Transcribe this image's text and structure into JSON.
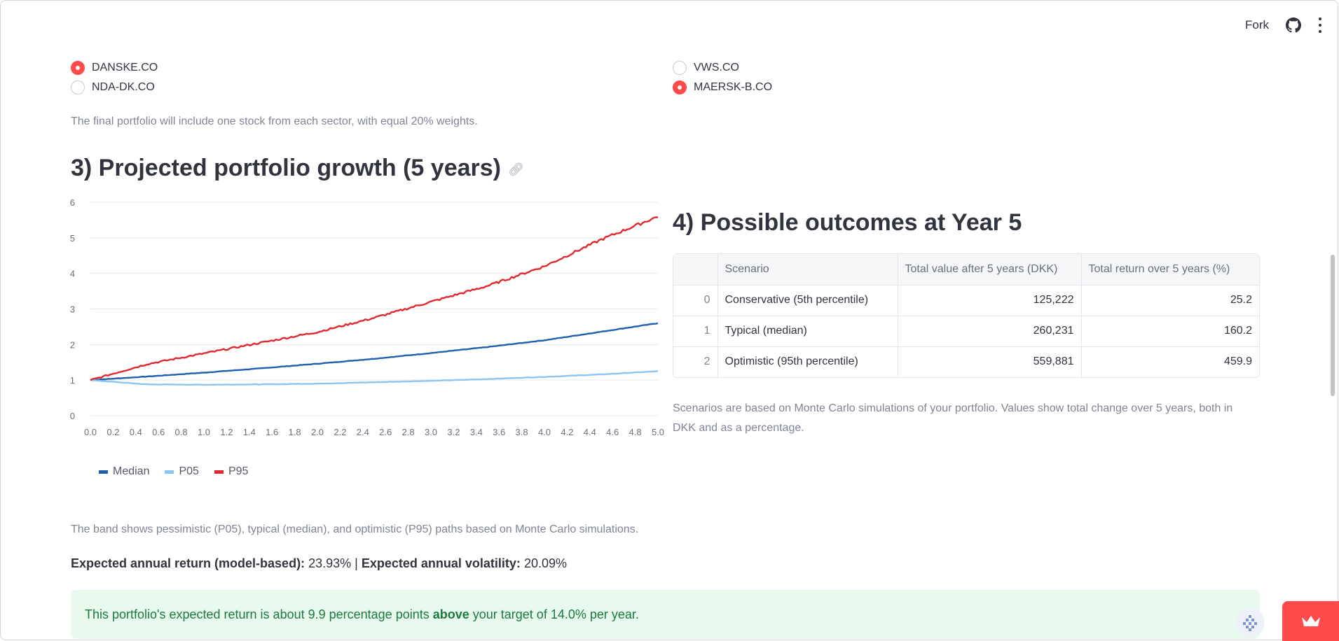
{
  "header": {
    "fork_label": "Fork"
  },
  "radio_left": [
    {
      "label": "DANSKE.CO",
      "selected": true
    },
    {
      "label": "NDA-DK.CO",
      "selected": false
    }
  ],
  "radio_right": [
    {
      "label": "VWS.CO",
      "selected": false
    },
    {
      "label": "MAERSK-B.CO",
      "selected": true
    }
  ],
  "portfolio_note": "The final portfolio will include one stock from each sector, with equal 20% weights.",
  "section3": {
    "title": "3) Projected portfolio growth (5 years)"
  },
  "chart_data": {
    "type": "line",
    "xlim": [
      0,
      5
    ],
    "ylim": [
      0,
      6
    ],
    "x_ticks": [
      "0.0",
      "0.2",
      "0.4",
      "0.6",
      "0.8",
      "1.0",
      "1.2",
      "1.4",
      "1.6",
      "1.8",
      "2.0",
      "2.2",
      "2.4",
      "2.6",
      "2.8",
      "3.0",
      "3.2",
      "3.4",
      "3.6",
      "3.8",
      "4.0",
      "4.2",
      "4.4",
      "4.6",
      "4.8",
      "5.0"
    ],
    "y_ticks": [
      "0",
      "1",
      "2",
      "3",
      "4",
      "5",
      "6"
    ],
    "grid": "horizontal",
    "legend_position": "bottom-left",
    "x": [
      0,
      0.5,
      1.0,
      1.5,
      2.0,
      2.5,
      3.0,
      3.5,
      4.0,
      4.5,
      5.0
    ],
    "series": [
      {
        "name": "Median",
        "color": "#1f5fad",
        "values": [
          1.0,
          1.1,
          1.21,
          1.33,
          1.46,
          1.6,
          1.76,
          1.93,
          2.12,
          2.36,
          2.6
        ]
      },
      {
        "name": "P05",
        "color": "#8ec5f0",
        "values": [
          1.0,
          0.88,
          0.87,
          0.88,
          0.9,
          0.94,
          0.98,
          1.03,
          1.09,
          1.16,
          1.25
        ]
      },
      {
        "name": "P95",
        "color": "#e0292e",
        "values": [
          1.0,
          1.45,
          1.75,
          2.05,
          2.35,
          2.75,
          3.2,
          3.65,
          4.2,
          4.95,
          5.6
        ]
      }
    ]
  },
  "band_note": "The band shows pessimistic (P05), typical (median), and optimistic (P95) paths based on Monte Carlo simulations.",
  "metrics": {
    "return_label": "Expected annual return (model-based):",
    "return_value": "23.93%",
    "separator": "|",
    "vol_label": "Expected annual volatility:",
    "vol_value": "20.09%"
  },
  "success": {
    "prefix": "This portfolio's expected return is about 9.9 percentage points",
    "emphasis": "above",
    "suffix": "your target of 14.0% per year."
  },
  "section4": {
    "title": "4) Possible outcomes at Year 5"
  },
  "outcomes_table": {
    "columns": [
      "",
      "Scenario",
      "Total value after 5 years (DKK)",
      "Total return over 5 years (%)"
    ],
    "rows": [
      [
        "0",
        "Conservative (5th percentile)",
        "125,222",
        "25.2"
      ],
      [
        "1",
        "Typical (median)",
        "260,231",
        "160.2"
      ],
      [
        "2",
        "Optimistic (95th percentile)",
        "559,881",
        "459.9"
      ]
    ]
  },
  "scenarios_note": "Scenarios are based on Monte Carlo simulations of your portfolio. Values show total change over 5 years, both in DKK and as a percentage."
}
